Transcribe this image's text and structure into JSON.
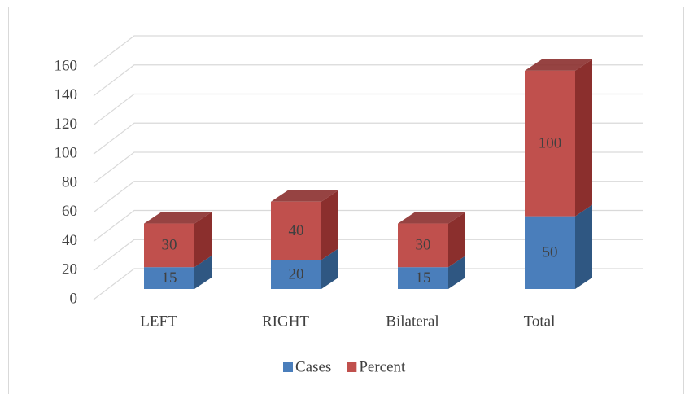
{
  "chart_data": {
    "type": "bar3d_stacked",
    "categories": [
      "LEFT",
      "RIGHT",
      "Bilateral",
      "Total"
    ],
    "series": [
      {
        "name": "Cases",
        "color": "#4a7ebb",
        "side_color": "#2f5782",
        "values": [
          15,
          20,
          15,
          50
        ]
      },
      {
        "name": "Percent",
        "color": "#c0504d",
        "side_color": "#8b2f2d",
        "values": [
          30,
          40,
          30,
          100
        ]
      }
    ],
    "ylim": [
      0,
      160
    ],
    "yticks": [
      0,
      20,
      40,
      60,
      80,
      100,
      120,
      140,
      160
    ],
    "grid": true,
    "legend": "bottom"
  }
}
